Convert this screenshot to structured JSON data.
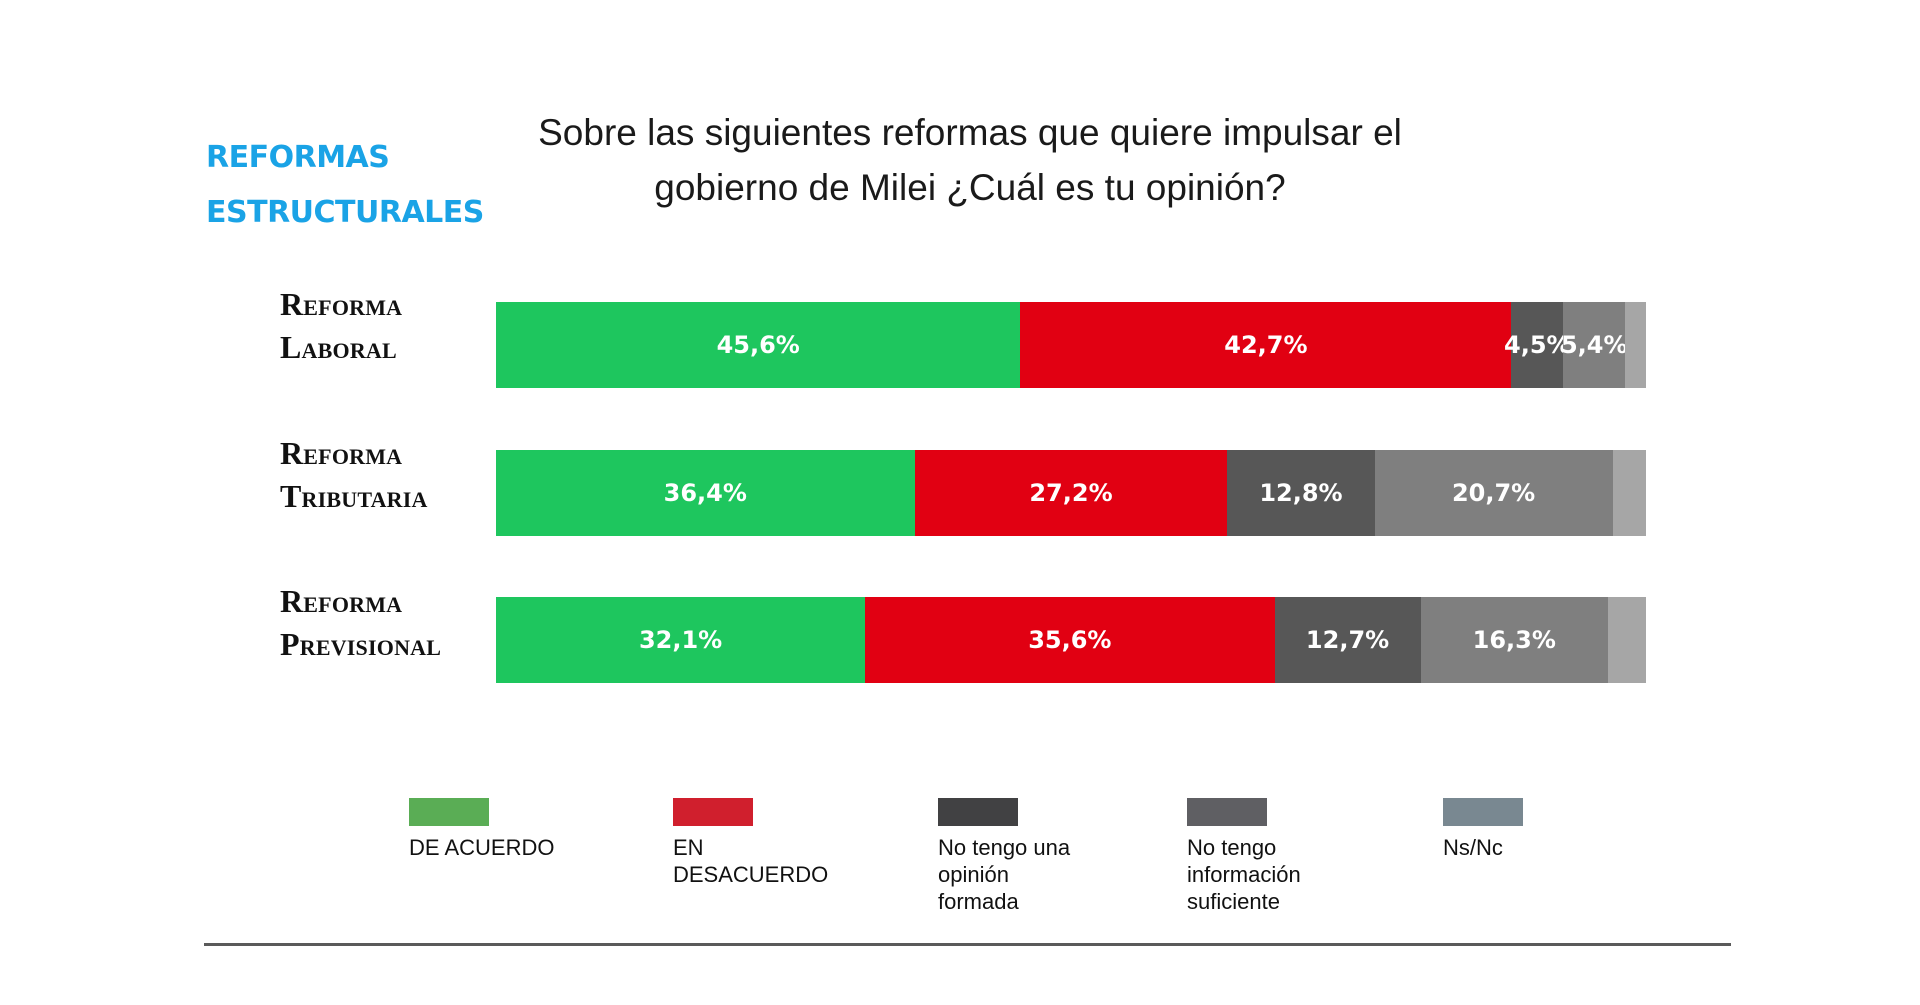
{
  "section": {
    "line1": "REFORMAS",
    "line2": "ESTRUCTURALES",
    "color": "#1aa3e6"
  },
  "title": {
    "line1": "Sobre las siguientes reformas que quiere impulsar el",
    "line2": "gobierno de Milei ¿Cuál es tu opinión?"
  },
  "chart_data": {
    "type": "bar",
    "orientation": "horizontal",
    "stacked": true,
    "title": "Sobre las siguientes reformas que quiere impulsar el gobierno de Milei ¿Cuál es tu opinión?",
    "xlabel": "",
    "ylabel": "",
    "xlim": [
      0,
      100
    ],
    "grid": false,
    "legend_position": "bottom",
    "categories": [
      {
        "line1": "Reforma",
        "line2": "Laboral"
      },
      {
        "line1": "Reforma",
        "line2": "Tributaria"
      },
      {
        "line1": "Reforma",
        "line2": "Previsional"
      }
    ],
    "series": [
      {
        "name": "DE ACUERDO",
        "legend_lines": [
          "DE ACUERDO"
        ],
        "color": "#1ec65e",
        "legend_color": "#5aad55",
        "values": [
          45.6,
          36.4,
          32.1
        ],
        "labels": [
          "45,6%",
          "36,4%",
          "32,1%"
        ]
      },
      {
        "name": "EN DESACUERDO",
        "legend_lines": [
          "EN DESACUERDO"
        ],
        "color": "#e10012",
        "legend_color": "#d01f2d",
        "values": [
          42.7,
          27.2,
          35.6
        ],
        "labels": [
          "42,7%",
          "27,2%",
          "35,6%"
        ]
      },
      {
        "name": "No tengo una opinión formada",
        "legend_lines": [
          "No tengo una",
          "opinión",
          "formada"
        ],
        "color": "#575757",
        "legend_color": "#414143",
        "values": [
          4.5,
          12.8,
          12.7
        ],
        "labels": [
          "4,5%",
          "12,8%",
          "12,7%"
        ]
      },
      {
        "name": "No tengo información suficiente",
        "legend_lines": [
          "No tengo",
          "información",
          "suficiente"
        ],
        "color": "#7f7f7f",
        "legend_color": "#5f5f63",
        "values": [
          5.4,
          20.7,
          16.3
        ],
        "labels": [
          "5,4%",
          "20,7%",
          "16,3%"
        ]
      },
      {
        "name": "Ns/Nc",
        "legend_lines": [
          "Ns/Nc"
        ],
        "color": "#a6a6a6",
        "legend_color": "#798891",
        "values": [
          1.8,
          2.9,
          3.3
        ],
        "labels": [
          "",
          "",
          ""
        ]
      }
    ]
  }
}
